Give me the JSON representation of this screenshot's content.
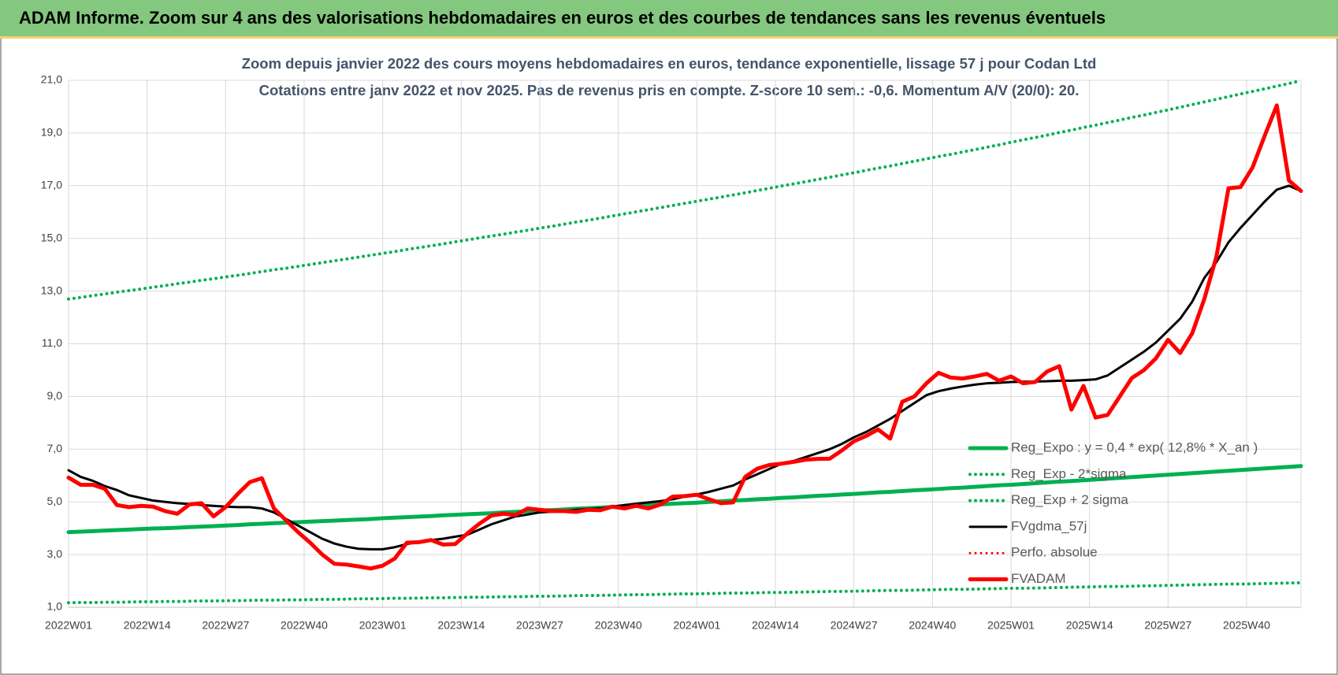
{
  "header": {
    "title": "ADAM Informe. Zoom sur 4 ans des valorisations hebdomadaires en euros et des courbes de tendances sans les revenus éventuels"
  },
  "chart_data": {
    "type": "line",
    "title": "Zoom depuis janvier 2022 des cours moyens hebdomadaires en euros, tendance exponentielle, lissage 57 j pour Codan Ltd",
    "subtitle": "Cotations entre janv 2022 et nov 2025. Pas de revenus pris en compte. Z-score 10 sem.: -0,6. Momentum A/V (20/0): 20.",
    "grid": true,
    "legend": "lower right",
    "xlim": [
      0,
      204
    ],
    "ylim": [
      1,
      21
    ],
    "xticks": [
      {
        "value": 0,
        "label": "2022W01"
      },
      {
        "value": 13,
        "label": "2022W14"
      },
      {
        "value": 26,
        "label": "2022W27"
      },
      {
        "value": 39,
        "label": "2022W40"
      },
      {
        "value": 52,
        "label": "2023W01"
      },
      {
        "value": 65,
        "label": "2023W14"
      },
      {
        "value": 78,
        "label": "2023W27"
      },
      {
        "value": 91,
        "label": "2023W40"
      },
      {
        "value": 104,
        "label": "2024W01"
      },
      {
        "value": 117,
        "label": "2024W14"
      },
      {
        "value": 130,
        "label": "2024W27"
      },
      {
        "value": 143,
        "label": "2024W40"
      },
      {
        "value": 156,
        "label": "2025W01"
      },
      {
        "value": 169,
        "label": "2025W14"
      },
      {
        "value": 182,
        "label": "2025W27"
      },
      {
        "value": 195,
        "label": "2025W40"
      }
    ],
    "yticks": [
      {
        "value": 1,
        "label": "1,0"
      },
      {
        "value": 3,
        "label": "3,0"
      },
      {
        "value": 5,
        "label": "5,0"
      },
      {
        "value": 7,
        "label": "7,0"
      },
      {
        "value": 9,
        "label": "9,0"
      },
      {
        "value": 11,
        "label": "11,0"
      },
      {
        "value": 13,
        "label": "13,0"
      },
      {
        "value": 15,
        "label": "15,0"
      },
      {
        "value": 17,
        "label": "17,0"
      },
      {
        "value": 19,
        "label": "19,0"
      },
      {
        "value": 21,
        "label": "21,0"
      }
    ],
    "x": [
      0,
      2,
      4,
      6,
      8,
      10,
      12,
      14,
      16,
      18,
      20,
      22,
      24,
      26,
      28,
      30,
      32,
      34,
      36,
      38,
      40,
      42,
      44,
      46,
      48,
      50,
      52,
      54,
      56,
      58,
      60,
      62,
      64,
      66,
      68,
      70,
      72,
      74,
      76,
      78,
      80,
      82,
      84,
      86,
      88,
      90,
      92,
      94,
      96,
      98,
      100,
      102,
      104,
      106,
      108,
      110,
      112,
      114,
      116,
      118,
      120,
      122,
      124,
      126,
      128,
      130,
      132,
      134,
      136,
      138,
      140,
      142,
      144,
      146,
      148,
      150,
      152,
      154,
      156,
      158,
      160,
      162,
      164,
      166,
      168,
      170,
      172,
      174,
      176,
      178,
      180,
      182,
      184,
      186,
      188,
      190,
      192,
      194,
      196,
      198,
      200,
      202,
      204
    ],
    "series": [
      {
        "name": "Reg_Expo : y = 0,4 * exp( 12,8% *  X_an )",
        "color": "#00b050",
        "style": "solid",
        "values": [
          3.85,
          3.87,
          3.89,
          3.91,
          3.93,
          3.95,
          3.97,
          3.99,
          4.0,
          4.02,
          4.04,
          4.06,
          4.08,
          4.1,
          4.12,
          4.15,
          4.17,
          4.19,
          4.21,
          4.23,
          4.25,
          4.27,
          4.29,
          4.31,
          4.33,
          4.35,
          4.38,
          4.4,
          4.42,
          4.44,
          4.46,
          4.49,
          4.51,
          4.53,
          4.55,
          4.57,
          4.6,
          4.62,
          4.64,
          4.67,
          4.69,
          4.71,
          4.74,
          4.76,
          4.78,
          4.81,
          4.83,
          4.85,
          4.88,
          4.9,
          4.93,
          4.95,
          4.97,
          5.0,
          5.02,
          5.05,
          5.07,
          5.1,
          5.12,
          5.15,
          5.17,
          5.2,
          5.23,
          5.25,
          5.28,
          5.3,
          5.33,
          5.36,
          5.38,
          5.41,
          5.44,
          5.46,
          5.49,
          5.52,
          5.54,
          5.57,
          5.6,
          5.63,
          5.65,
          5.68,
          5.71,
          5.74,
          5.77,
          5.79,
          5.82,
          5.85,
          5.88,
          5.91,
          5.94,
          5.97,
          6.0,
          6.03,
          6.06,
          6.09,
          6.12,
          6.15,
          6.18,
          6.21,
          6.24,
          6.27,
          6.3,
          6.33,
          6.36
        ]
      },
      {
        "name": "Reg_Exp - 2*sigma",
        "color": "#00b050",
        "style": "dotted",
        "values": [
          1.17,
          1.18,
          1.18,
          1.19,
          1.19,
          1.2,
          1.21,
          1.21,
          1.22,
          1.22,
          1.23,
          1.24,
          1.24,
          1.25,
          1.25,
          1.26,
          1.27,
          1.27,
          1.28,
          1.28,
          1.29,
          1.3,
          1.3,
          1.31,
          1.32,
          1.32,
          1.33,
          1.34,
          1.34,
          1.35,
          1.36,
          1.36,
          1.37,
          1.38,
          1.38,
          1.39,
          1.4,
          1.4,
          1.41,
          1.42,
          1.42,
          1.43,
          1.44,
          1.45,
          1.45,
          1.46,
          1.47,
          1.48,
          1.48,
          1.49,
          1.5,
          1.51,
          1.51,
          1.52,
          1.53,
          1.54,
          1.54,
          1.55,
          1.56,
          1.56,
          1.57,
          1.58,
          1.59,
          1.6,
          1.6,
          1.61,
          1.62,
          1.63,
          1.64,
          1.64,
          1.65,
          1.66,
          1.67,
          1.68,
          1.68,
          1.69,
          1.7,
          1.71,
          1.72,
          1.72,
          1.73,
          1.74,
          1.75,
          1.76,
          1.77,
          1.78,
          1.79,
          1.79,
          1.8,
          1.81,
          1.82,
          1.83,
          1.84,
          1.85,
          1.86,
          1.87,
          1.88,
          1.88,
          1.89,
          1.9,
          1.91,
          1.92,
          1.93
        ]
      },
      {
        "name": "Reg_Exp + 2 sigma",
        "color": "#00b050",
        "style": "dotted",
        "values": [
          12.7,
          12.76,
          12.83,
          12.89,
          12.96,
          13.02,
          13.08,
          13.15,
          13.21,
          13.28,
          13.34,
          13.41,
          13.47,
          13.54,
          13.6,
          13.67,
          13.74,
          13.81,
          13.87,
          13.94,
          14.01,
          14.08,
          14.15,
          14.22,
          14.29,
          14.36,
          14.43,
          14.5,
          14.58,
          14.65,
          14.72,
          14.79,
          14.87,
          14.94,
          15.02,
          15.09,
          15.16,
          15.24,
          15.31,
          15.39,
          15.46,
          15.54,
          15.62,
          15.69,
          15.77,
          15.85,
          15.93,
          16.01,
          16.09,
          16.17,
          16.25,
          16.33,
          16.41,
          16.49,
          16.57,
          16.65,
          16.73,
          16.82,
          16.9,
          16.99,
          17.07,
          17.15,
          17.24,
          17.32,
          17.41,
          17.49,
          17.58,
          17.67,
          17.75,
          17.84,
          17.93,
          18.02,
          18.11,
          18.19,
          18.28,
          18.37,
          18.46,
          18.55,
          18.65,
          18.74,
          18.83,
          18.92,
          19.02,
          19.11,
          19.21,
          19.3,
          19.4,
          19.49,
          19.59,
          19.68,
          19.78,
          19.88,
          19.98,
          20.08,
          20.18,
          20.28,
          20.38,
          20.48,
          20.58,
          20.68,
          20.78,
          20.88,
          20.99
        ]
      },
      {
        "name": "FVgdma_57j",
        "color": "#000000",
        "style": "solid",
        "values": [
          6.2,
          5.95,
          5.8,
          5.6,
          5.45,
          5.25,
          5.15,
          5.05,
          5.0,
          4.95,
          4.92,
          4.88,
          4.85,
          4.82,
          4.8,
          4.8,
          4.75,
          4.6,
          4.35,
          4.1,
          3.85,
          3.6,
          3.42,
          3.3,
          3.22,
          3.2,
          3.2,
          3.28,
          3.4,
          3.48,
          3.55,
          3.6,
          3.68,
          3.75,
          3.95,
          4.15,
          4.3,
          4.45,
          4.52,
          4.6,
          4.63,
          4.66,
          4.7,
          4.73,
          4.75,
          4.82,
          4.88,
          4.93,
          4.98,
          5.03,
          5.1,
          5.2,
          5.28,
          5.38,
          5.5,
          5.62,
          5.85,
          6.05,
          6.25,
          6.45,
          6.55,
          6.7,
          6.85,
          7.0,
          7.2,
          7.45,
          7.65,
          7.9,
          8.15,
          8.45,
          8.75,
          9.05,
          9.2,
          9.3,
          9.38,
          9.45,
          9.5,
          9.52,
          9.55,
          9.56,
          9.57,
          9.58,
          9.6,
          9.6,
          9.62,
          9.65,
          9.8,
          10.1,
          10.4,
          10.7,
          11.05,
          11.5,
          11.95,
          12.6,
          13.5,
          14.1,
          14.85,
          15.4,
          15.9,
          16.4,
          16.85,
          17.0,
          16.8
        ]
      },
      {
        "name": "Perfo. absolue",
        "color": "#ff0000",
        "style": "dotted"
      },
      {
        "name": "FVADAM",
        "color": "#ff0000",
        "style": "solid",
        "values": [
          5.92,
          5.65,
          5.65,
          5.5,
          4.88,
          4.8,
          4.85,
          4.82,
          4.65,
          4.55,
          4.9,
          4.95,
          4.45,
          4.8,
          5.3,
          5.75,
          5.9,
          4.75,
          4.3,
          3.85,
          3.45,
          3.0,
          2.65,
          2.62,
          2.55,
          2.47,
          2.58,
          2.85,
          3.45,
          3.47,
          3.55,
          3.38,
          3.4,
          3.8,
          4.17,
          4.48,
          4.55,
          4.5,
          4.75,
          4.7,
          4.65,
          4.65,
          4.62,
          4.7,
          4.68,
          4.82,
          4.75,
          4.85,
          4.75,
          4.9,
          5.2,
          5.22,
          5.27,
          5.1,
          4.95,
          4.98,
          5.95,
          6.26,
          6.4,
          6.45,
          6.52,
          6.6,
          6.63,
          6.64,
          6.95,
          7.3,
          7.5,
          7.75,
          7.4,
          8.8,
          9.0,
          9.5,
          9.9,
          9.72,
          9.68,
          9.76,
          9.86,
          9.6,
          9.76,
          9.5,
          9.55,
          9.95,
          10.15,
          8.5,
          9.4,
          8.2,
          8.3,
          9.0,
          9.7,
          10.0,
          10.45,
          11.15,
          10.65,
          11.4,
          12.7,
          14.3,
          16.9,
          16.95,
          17.7,
          18.9,
          20.05,
          17.2,
          16.8
        ]
      }
    ]
  }
}
